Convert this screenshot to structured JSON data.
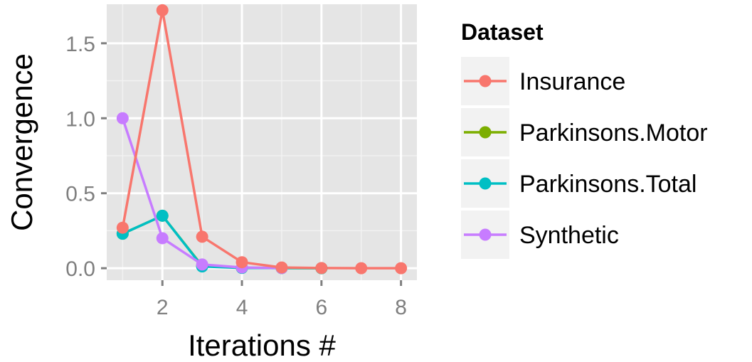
{
  "chart_data": {
    "type": "line",
    "title": "",
    "xlabel": "Iterations #",
    "ylabel": "Convergence",
    "xlim": [
      0.6,
      8.4
    ],
    "ylim": [
      -0.08,
      1.76
    ],
    "xticks": [
      2,
      4,
      6,
      8
    ],
    "xtick_labels": [
      "2",
      "4",
      "6",
      "8"
    ],
    "yticks": [
      0.0,
      0.5,
      1.0,
      1.5
    ],
    "ytick_labels": [
      "0.0",
      "0.5",
      "1.0",
      "1.5"
    ],
    "grid": true,
    "legend": {
      "title": "Dataset",
      "position": "right"
    },
    "series": [
      {
        "name": "Insurance",
        "color": "#F8766D",
        "x": [
          1,
          2,
          3,
          4,
          5,
          6,
          7,
          8
        ],
        "y": [
          0.27,
          1.72,
          0.21,
          0.04,
          0.005,
          0.001,
          0.0,
          0.0
        ]
      },
      {
        "name": "Parkinsons.Motor",
        "color": "#7CAE00",
        "x": [
          1,
          2,
          3,
          4,
          5,
          6
        ],
        "y": [
          0.23,
          0.35,
          0.015,
          0.003,
          0.001,
          0.0
        ]
      },
      {
        "name": "Parkinsons.Total",
        "color": "#00BFC4",
        "x": [
          1,
          2,
          3,
          4,
          5,
          6
        ],
        "y": [
          0.23,
          0.35,
          0.012,
          0.002,
          0.001,
          0.0
        ]
      },
      {
        "name": "Synthetic",
        "color": "#C77CFF",
        "x": [
          1,
          2,
          3,
          4,
          5
        ],
        "y": [
          1.0,
          0.2,
          0.025,
          0.005,
          0.001
        ]
      }
    ]
  }
}
